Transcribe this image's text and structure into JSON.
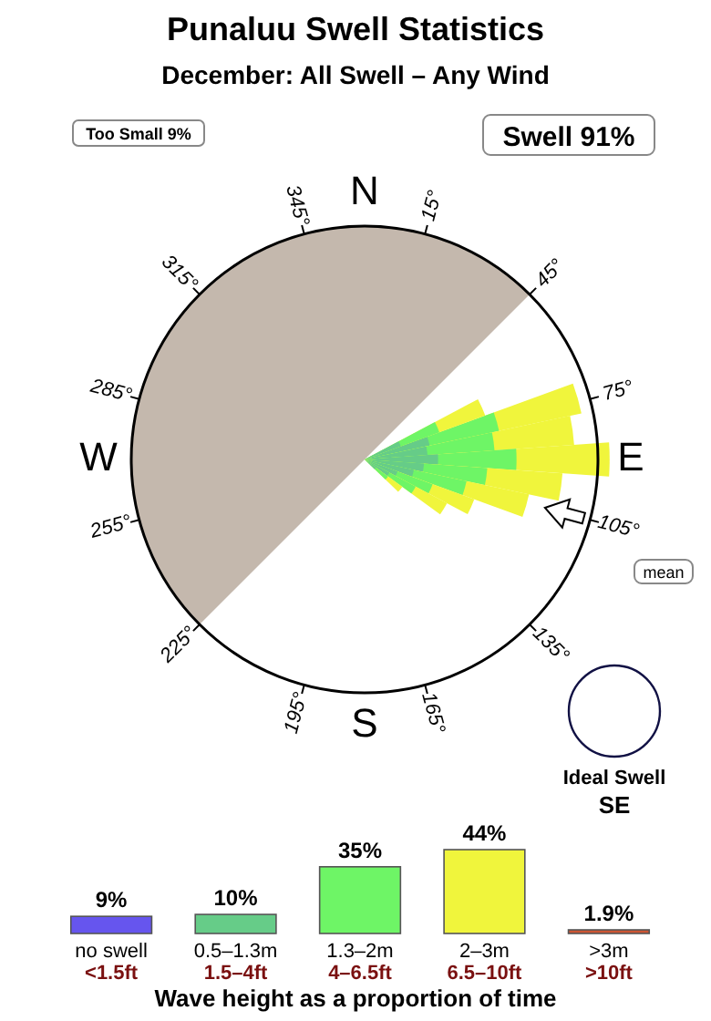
{
  "chart_data": [
    {
      "type": "other",
      "title": "Punaluu Swell Statistics",
      "subtitle": "December: All Swell – Any Wind",
      "categories": [
        "N",
        "E",
        "S",
        "W"
      ],
      "annotations": [
        "Too Small 9%",
        "Swell 91%",
        "mean",
        "Ideal Swell",
        "SE",
        "15°",
        "45°",
        "75°",
        "105°",
        "135°",
        "165°",
        "195°",
        "225°",
        "255°",
        "285°",
        "315°",
        "345°"
      ]
    },
    {
      "type": "bar",
      "xlabel": "Wave height as a proportion of time",
      "categories": [
        "no swell\n<1.5ft",
        "0.5–1.3m\n1.5–4ft",
        "1.3–2m\n4–6.5ft",
        "2–3m\n6.5–10ft",
        ">3m\n>10ft"
      ],
      "values": [
        9,
        10,
        35,
        44,
        1.9
      ],
      "value_labels": [
        "9%",
        "10%",
        "35%",
        "44%",
        "1.9%"
      ],
      "colors": [
        "#6655ee",
        "#66cc88",
        "#6ef566",
        "#f0f53c",
        "#cc5533"
      ]
    }
  ]
}
